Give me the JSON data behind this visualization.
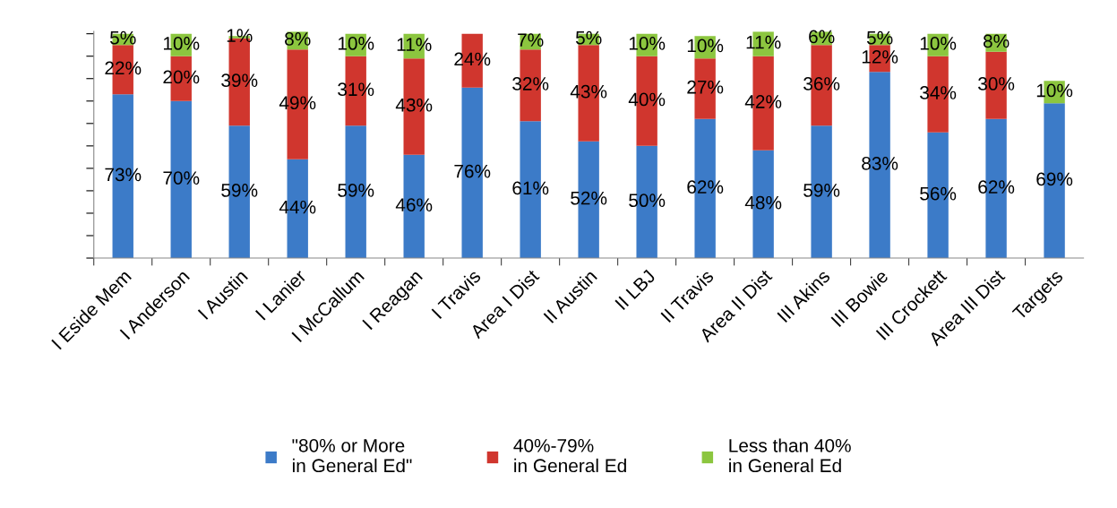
{
  "chart_data": {
    "type": "bar",
    "stacked": true,
    "categories": [
      "I Eside Mem",
      "I Anderson",
      "I Austin",
      "I Lanier",
      "I McCallum",
      "I Reagan",
      "I Travis",
      "Area I Dist",
      "II Austin",
      "II LBJ",
      "II Travis",
      "Area II Dist",
      "III Akins",
      "III Bowie",
      "III Crockett",
      "Area III Dist",
      "Targets"
    ],
    "series": [
      {
        "name": "\"80% or More\nin General Ed\"",
        "color": "#3c7bc8",
        "values": [
          73,
          70,
          59,
          44,
          59,
          46,
          76,
          61,
          52,
          50,
          62,
          48,
          59,
          83,
          56,
          62,
          69
        ],
        "value_labels": [
          "73%",
          "70%",
          "59%",
          "44%",
          "59%",
          "46%",
          "76%",
          "61%",
          "52%",
          "50%",
          "62%",
          "48%",
          "59%",
          "83%",
          "56%",
          "62%",
          "69%"
        ]
      },
      {
        "name": "40%-79%\nin General Ed",
        "color": "#d0362e",
        "values": [
          22,
          20,
          39,
          49,
          31,
          43,
          24,
          32,
          43,
          40,
          27,
          42,
          36,
          12,
          34,
          30,
          null
        ],
        "value_labels": [
          "22%",
          "20%",
          "39%",
          "49%",
          "31%",
          "43%",
          "24%",
          "32%",
          "43%",
          "40%",
          "27%",
          "42%",
          "36%",
          "12%",
          "34%",
          "30%",
          null
        ]
      },
      {
        "name": "Less than 40%\nin General Ed",
        "color": "#8cc63f",
        "values": [
          5,
          10,
          1,
          8,
          10,
          11,
          null,
          7,
          5,
          10,
          10,
          11,
          6,
          5,
          10,
          8,
          10
        ],
        "value_labels": [
          "5%",
          "10%",
          "1%",
          "8%",
          "10%",
          "11%",
          null,
          "7%",
          "5%",
          "10%",
          "10%",
          "11%",
          "6%",
          "5%",
          "10%",
          "8%",
          "10%"
        ]
      }
    ],
    "ylim": [
      0,
      101
    ],
    "yticks": [
      {
        "value": 0,
        "label": null
      },
      {
        "value": 10,
        "label": null
      },
      {
        "value": 20,
        "label": null
      },
      {
        "value": 30,
        "label": null
      },
      {
        "value": 40,
        "label": null
      },
      {
        "value": 50,
        "label": null
      },
      {
        "value": 60,
        "label": null
      },
      {
        "value": 70,
        "label": null
      },
      {
        "value": 80,
        "label": null
      },
      {
        "value": 90,
        "label": null
      },
      {
        "value": 100,
        "label": null
      }
    ],
    "tick_labels": "x",
    "grid": false,
    "legend": "bottom"
  }
}
